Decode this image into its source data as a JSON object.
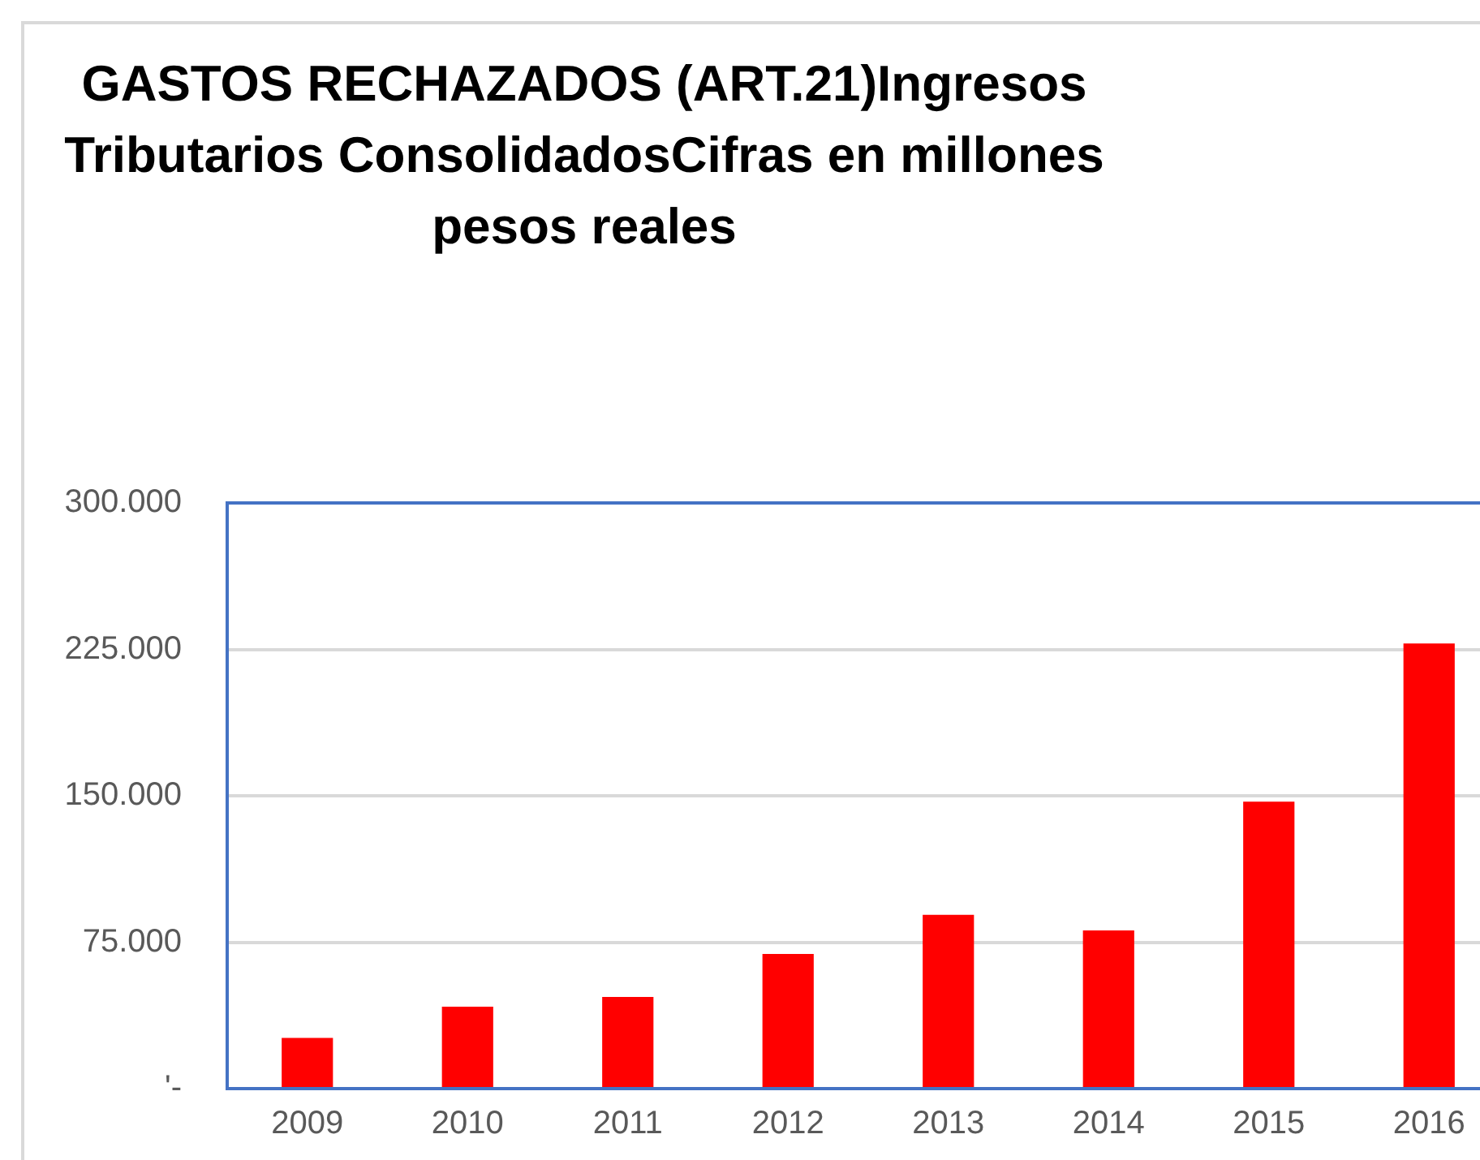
{
  "chart_data": {
    "type": "bar",
    "title": "GASTOS RECHAZADOS (ART.21)Ingresos Tributarios ConsolidadosCifras en millones pesos reales",
    "categories": [
      "2009",
      "2010",
      "2011",
      "2012",
      "2013",
      "2014",
      "2015",
      "2016"
    ],
    "values": [
      26000,
      42000,
      47000,
      69000,
      89000,
      81000,
      147000,
      228000
    ],
    "color": "#ff0000",
    "ylim": [
      0,
      300000
    ],
    "yticks": [
      {
        "value": 0,
        "label": "'-"
      },
      {
        "value": 75000,
        "label": "75.000"
      },
      {
        "value": 150000,
        "label": "150.000"
      },
      {
        "value": 225000,
        "label": "225.000"
      },
      {
        "value": 300000,
        "label": "300.000"
      }
    ],
    "grid": "y"
  }
}
